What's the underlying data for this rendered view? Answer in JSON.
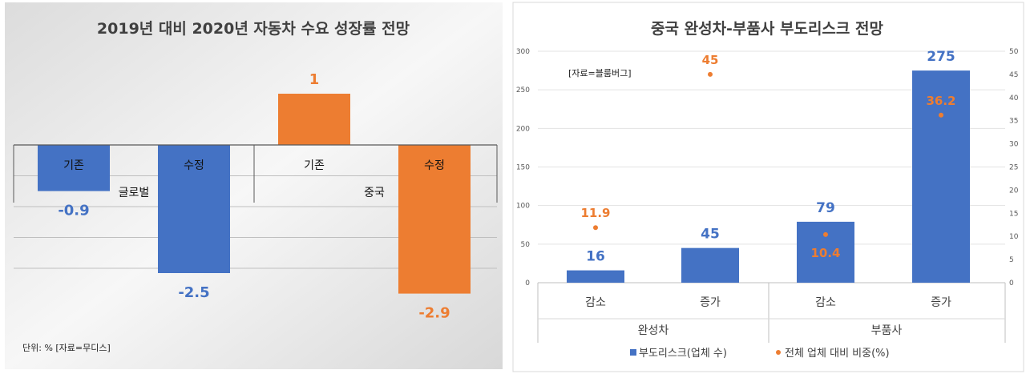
{
  "charts": {
    "left": {
      "title": "2019년 대비 2020년 자동차 수요 성장률 전망",
      "note": "단위: % [자료=무디스]"
    },
    "right": {
      "title": "중국 완성차-부품사 부도리스크 전망",
      "source": "[자료=블룸버그]"
    }
  },
  "chart_data": [
    {
      "type": "bar",
      "title": "2019년 대비 2020년 자동차 수요 성장률 전망",
      "unit": "단위: %",
      "groups": [
        "글로벌",
        "중국"
      ],
      "categories": [
        "기존",
        "수정",
        "기존",
        "수정"
      ],
      "values": [
        -0.9,
        -2.5,
        1,
        -2.9
      ],
      "value_labels": [
        "-0.9",
        "-2.5",
        "1",
        "-2.9"
      ],
      "colors": [
        "#4472C4",
        "#4472C4",
        "#ED7D31",
        "#ED7D31"
      ]
    },
    {
      "type": "bar",
      "title": "중국 완성차-부품사 부도리스크 전망",
      "groups": [
        "완성차",
        "부품사"
      ],
      "categories": [
        "감소",
        "증가",
        "감소",
        "증가"
      ],
      "series": [
        {
          "name": "부도리스크(업체 수)",
          "type": "bar",
          "axis": "left",
          "color": "#4472C4",
          "values": [
            16,
            45,
            79,
            275
          ],
          "labels": [
            "16",
            "45",
            "79",
            "275"
          ]
        },
        {
          "name": "전체 업체 대비 비중(%)",
          "type": "scatter",
          "axis": "right",
          "color": "#ED7D31",
          "values": [
            11.9,
            45,
            10.4,
            36.2
          ],
          "labels": [
            "11.9",
            "45",
            "10.4",
            "36.2"
          ]
        }
      ],
      "ylim_left": [
        0,
        300
      ],
      "yticks_left": [
        0,
        50,
        100,
        150,
        200,
        250,
        300
      ],
      "ylim_right": [
        0,
        50
      ],
      "yticks_right": [
        0,
        5,
        10,
        15,
        20,
        25,
        30,
        35,
        40,
        45,
        50
      ],
      "grid": true,
      "legend": "bottom"
    }
  ]
}
